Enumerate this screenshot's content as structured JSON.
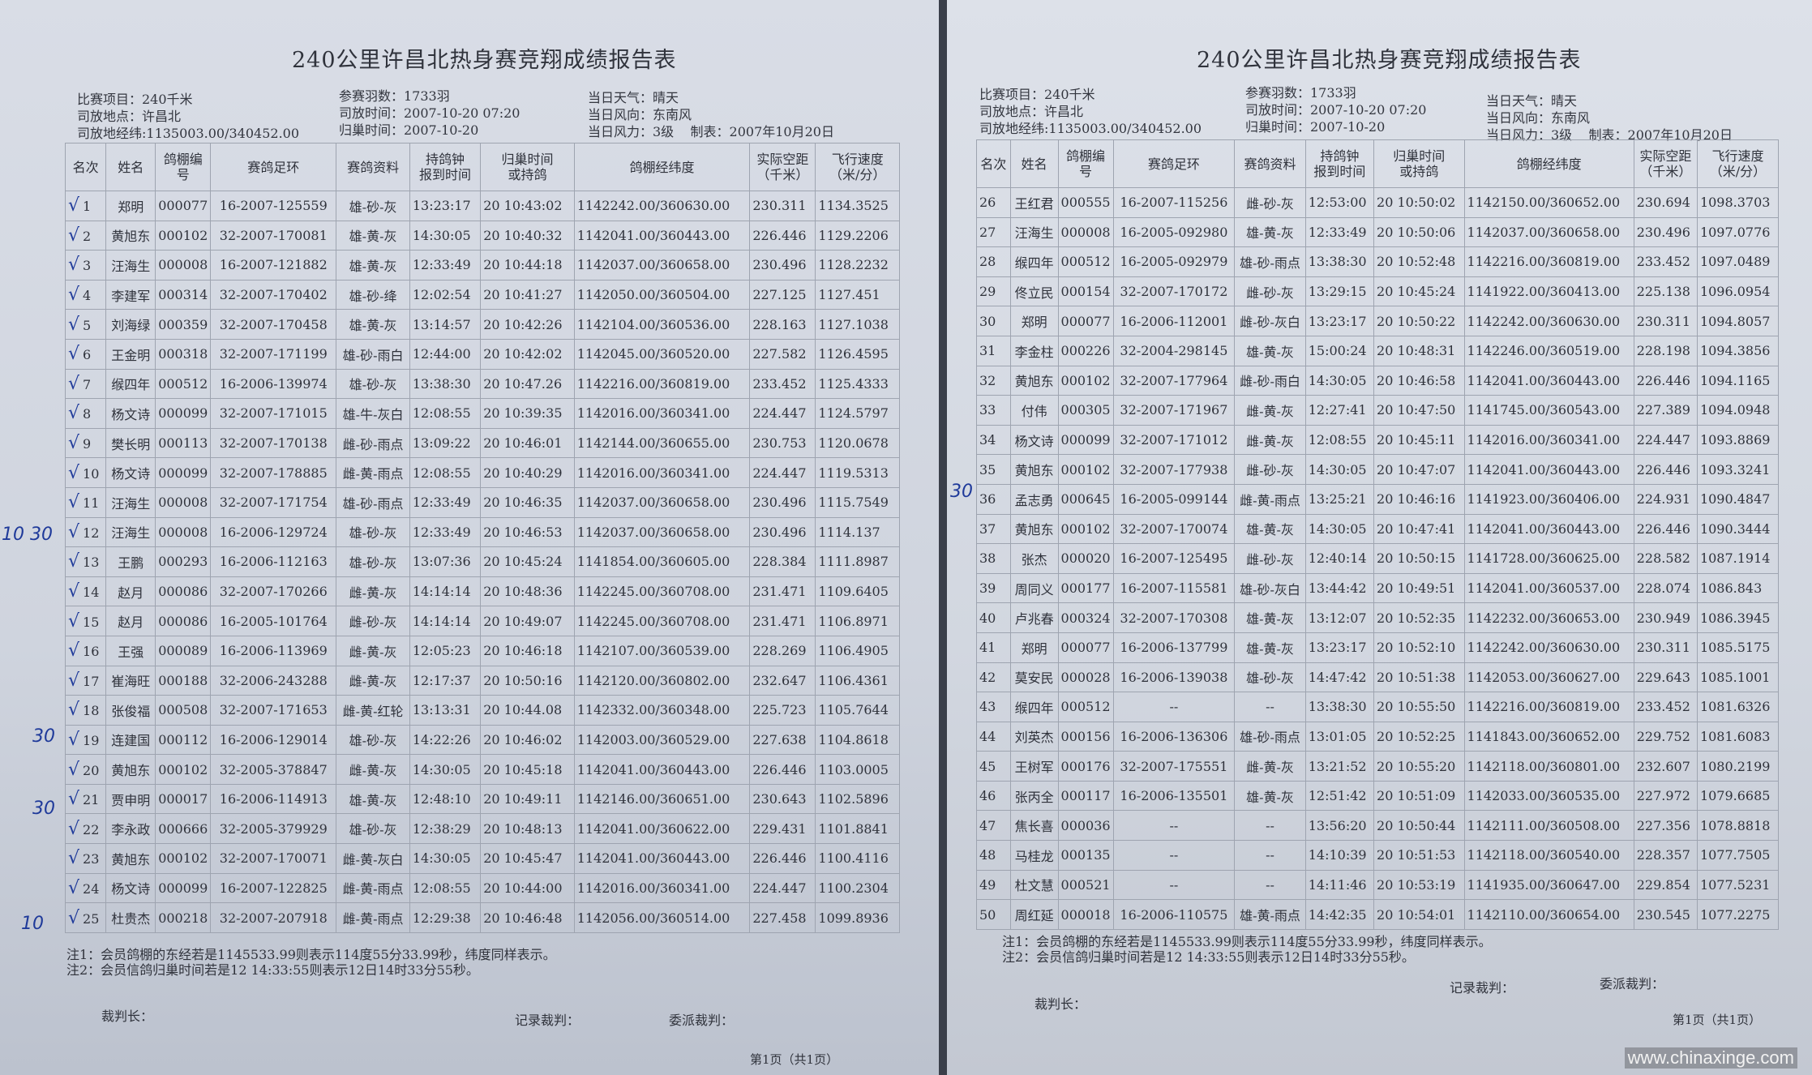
{
  "title": "240公里许昌北热身赛竞翔成绩报告表",
  "meta": {
    "race_item": "比赛项目：240千米",
    "release_place": "司放地点：许昌北",
    "release_coords": "司放地经纬:1135003.00/340452.00",
    "entries": "参赛羽数：1733羽",
    "release_time": "司放时间：2007-10-20 07:20",
    "return_date": "归巢时间：2007-10-20",
    "weather": "当日天气：晴天",
    "wind_dir": "当日风向：东南风",
    "wind_force": "当日风力：3级",
    "made": "制表：2007年10月20日"
  },
  "columns": [
    "名次",
    "姓名",
    "鸽棚编号",
    "赛鸽足环",
    "赛鸽资料",
    "持鸽钟报到时间",
    "归巢时间或持鸽",
    "鸽棚经纬度",
    "实际空距(千米)",
    "飞行速度(米/分)"
  ],
  "columns_html": {
    "loft": [
      "鸽棚",
      "编号"
    ],
    "clock": [
      "持鸽钟",
      "报到时间"
    ],
    "ret": [
      "归巢时间",
      "或持鸽"
    ],
    "dist": [
      "实际空距",
      "（千米）"
    ],
    "speed": [
      "飞行速度",
      "（米/分）"
    ]
  },
  "left_rows": [
    [
      "1",
      "郑明",
      "000077",
      "16-2007-125559",
      "雄-砂-灰",
      "13:23:17",
      "20 10:43:02",
      "1142242.00/360630.00",
      "230.311",
      "1134.3525"
    ],
    [
      "2",
      "黄旭东",
      "000102",
      "32-2007-170081",
      "雄-黄-灰",
      "14:30:05",
      "20 10:40:32",
      "1142041.00/360443.00",
      "226.446",
      "1129.2206"
    ],
    [
      "3",
      "汪海生",
      "000008",
      "16-2007-121882",
      "雄-黄-灰",
      "12:33:49",
      "20 10:44:18",
      "1142037.00/360658.00",
      "230.496",
      "1128.2232"
    ],
    [
      "4",
      "李建军",
      "000314",
      "32-2007-170402",
      "雄-砂-绛",
      "12:02:54",
      "20 10:41:27",
      "1142050.00/360504.00",
      "227.125",
      "1127.451"
    ],
    [
      "5",
      "刘海绿",
      "000359",
      "32-2007-170458",
      "雄-黄-灰",
      "13:14:57",
      "20 10:42:26",
      "1142104.00/360536.00",
      "228.163",
      "1127.1038"
    ],
    [
      "6",
      "王金明",
      "000318",
      "32-2007-171199",
      "雄-砂-雨白",
      "12:44:00",
      "20 10:42:02",
      "1142045.00/360520.00",
      "227.582",
      "1126.4595"
    ],
    [
      "7",
      "缑四年",
      "000512",
      "16-2006-139974",
      "雄-砂-灰",
      "13:38:30",
      "20 10:47.26",
      "1142216.00/360819.00",
      "233.452",
      "1125.4333"
    ],
    [
      "8",
      "杨文诗",
      "000099",
      "32-2007-171015",
      "雄-牛-灰白",
      "12:08:55",
      "20 10:39:35",
      "1142016.00/360341.00",
      "224.447",
      "1124.5797"
    ],
    [
      "9",
      "樊长明",
      "000113",
      "32-2007-170138",
      "雌-砂-雨点",
      "13:09:22",
      "20 10:46:01",
      "1142144.00/360655.00",
      "230.753",
      "1120.0678"
    ],
    [
      "10",
      "杨文诗",
      "000099",
      "32-2007-178885",
      "雌-黄-雨点",
      "12:08:55",
      "20 10:40:29",
      "1142016.00/360341.00",
      "224.447",
      "1119.5313"
    ],
    [
      "11",
      "汪海生",
      "000008",
      "32-2007-171754",
      "雄-砂-雨点",
      "12:33:49",
      "20 10:46:35",
      "1142037.00/360658.00",
      "230.496",
      "1115.7549"
    ],
    [
      "12",
      "汪海生",
      "000008",
      "16-2006-129724",
      "雄-砂-灰",
      "12:33:49",
      "20 10:46:53",
      "1142037.00/360658.00",
      "230.496",
      "1114.137"
    ],
    [
      "13",
      "王鹏",
      "000293",
      "16-2006-112163",
      "雄-砂-灰",
      "13:07:36",
      "20 10:45:24",
      "1141854.00/360605.00",
      "228.384",
      "1111.8987"
    ],
    [
      "14",
      "赵月",
      "000086",
      "32-2007-170266",
      "雌-黄-灰",
      "14:14:14",
      "20 10:48:36",
      "1142245.00/360708.00",
      "231.471",
      "1109.6405"
    ],
    [
      "15",
      "赵月",
      "000086",
      "16-2005-101764",
      "雌-砂-灰",
      "14:14:14",
      "20 10:49:07",
      "1142245.00/360708.00",
      "231.471",
      "1106.8971"
    ],
    [
      "16",
      "王强",
      "000089",
      "16-2006-113969",
      "雌-黄-灰",
      "12:05:23",
      "20 10:46:18",
      "1142107.00/360539.00",
      "228.269",
      "1106.4905"
    ],
    [
      "17",
      "崔海旺",
      "000188",
      "32-2006-243288",
      "雌-黄-灰",
      "12:17:37",
      "20 10:50:16",
      "1142120.00/360802.00",
      "232.647",
      "1106.4361"
    ],
    [
      "18",
      "张俊福",
      "000508",
      "32-2007-171653",
      "雌-黄-红轮",
      "13:13:31",
      "20 10:44.08",
      "1142332.00/360348.00",
      "225.723",
      "1105.7644"
    ],
    [
      "19",
      "连建国",
      "000112",
      "16-2006-129014",
      "雄-砂-灰",
      "14:22:26",
      "20 10:46:02",
      "1142003.00/360529.00",
      "227.638",
      "1104.8618"
    ],
    [
      "20",
      "黄旭东",
      "000102",
      "32-2005-378847",
      "雌-黄-灰",
      "14:30:05",
      "20 10:45:18",
      "1142041.00/360443.00",
      "226.446",
      "1103.0005"
    ],
    [
      "21",
      "贾申明",
      "000017",
      "16-2006-114913",
      "雄-黄-灰",
      "12:48:10",
      "20 10:49:11",
      "1142146.00/360651.00",
      "230.643",
      "1102.5896"
    ],
    [
      "22",
      "李永政",
      "000666",
      "32-2005-379929",
      "雄-砂-灰",
      "12:38:29",
      "20 10:48:13",
      "1142041.00/360622.00",
      "229.431",
      "1101.8841"
    ],
    [
      "23",
      "黄旭东",
      "000102",
      "32-2007-170071",
      "雌-黄-灰白",
      "14:30:05",
      "20 10:45:47",
      "1142041.00/360443.00",
      "226.446",
      "1100.4116"
    ],
    [
      "24",
      "杨文诗",
      "000099",
      "16-2007-122825",
      "雌-黄-雨点",
      "12:08:55",
      "20 10:44:00",
      "1142016.00/360341.00",
      "224.447",
      "1100.2304"
    ],
    [
      "25",
      "杜贵杰",
      "000218",
      "32-2007-207918",
      "雌-黄-雨点",
      "12:29:38",
      "20 10:46:48",
      "1142056.00/360514.00",
      "227.458",
      "1099.8936"
    ]
  ],
  "right_rows": [
    [
      "26",
      "王红君",
      "000555",
      "16-2007-115256",
      "雌-砂-灰",
      "12:53:00",
      "20 10:50:02",
      "1142150.00/360652.00",
      "230.694",
      "1098.3703"
    ],
    [
      "27",
      "汪海生",
      "000008",
      "16-2005-092980",
      "雄-黄-灰",
      "12:33:49",
      "20 10:50:06",
      "1142037.00/360658.00",
      "230.496",
      "1097.0776"
    ],
    [
      "28",
      "缑四年",
      "000512",
      "16-2005-092979",
      "雄-砂-雨点",
      "13:38:30",
      "20 10:52:48",
      "1142216.00/360819.00",
      "233.452",
      "1097.0489"
    ],
    [
      "29",
      "佟立民",
      "000154",
      "32-2007-170172",
      "雌-砂-灰",
      "13:29:15",
      "20 10:45:24",
      "1141922.00/360413.00",
      "225.138",
      "1096.0954"
    ],
    [
      "30",
      "郑明",
      "000077",
      "16-2006-112001",
      "雌-砂-灰白",
      "13:23:17",
      "20 10:50:22",
      "1142242.00/360630.00",
      "230.311",
      "1094.8057"
    ],
    [
      "31",
      "李金柱",
      "000226",
      "32-2004-298145",
      "雄-黄-灰",
      "15:00:24",
      "20 10:48:31",
      "1142246.00/360519.00",
      "228.198",
      "1094.3856"
    ],
    [
      "32",
      "黄旭东",
      "000102",
      "32-2007-177964",
      "雌-砂-雨白",
      "14:30:05",
      "20 10:46:58",
      "1142041.00/360443.00",
      "226.446",
      "1094.1165"
    ],
    [
      "33",
      "付伟",
      "000305",
      "32-2007-171967",
      "雌-黄-灰",
      "12:27:41",
      "20 10:47:50",
      "1141745.00/360543.00",
      "227.389",
      "1094.0948"
    ],
    [
      "34",
      "杨文诗",
      "000099",
      "32-2007-171012",
      "雌-黄-灰",
      "12:08:55",
      "20 10:45:11",
      "1142016.00/360341.00",
      "224.447",
      "1093.8869"
    ],
    [
      "35",
      "黄旭东",
      "000102",
      "32-2007-177938",
      "雌-砂-灰",
      "14:30:05",
      "20 10:47:07",
      "1142041.00/360443.00",
      "226.446",
      "1093.3241"
    ],
    [
      "36",
      "孟志勇",
      "000645",
      "16-2005-099144",
      "雌-黄-雨点",
      "13:25:21",
      "20 10:46:16",
      "1141923.00/360406.00",
      "224.931",
      "1090.4847"
    ],
    [
      "37",
      "黄旭东",
      "000102",
      "32-2007-170074",
      "雄-黄-灰",
      "14:30:05",
      "20 10:47:41",
      "1142041.00/360443.00",
      "226.446",
      "1090.3444"
    ],
    [
      "38",
      "张杰",
      "000020",
      "16-2007-125495",
      "雌-砂-灰",
      "12:40:14",
      "20 10:50:15",
      "1141728.00/360625.00",
      "228.582",
      "1087.1914"
    ],
    [
      "39",
      "周同义",
      "000177",
      "16-2007-115581",
      "雄-砂-灰白",
      "13:44:42",
      "20 10:49:51",
      "1142041.00/360537.00",
      "228.074",
      "1086.843"
    ],
    [
      "40",
      "卢兆春",
      "000324",
      "32-2007-170308",
      "雄-黄-灰",
      "13:12:07",
      "20 10:52:35",
      "1142232.00/360653.00",
      "230.949",
      "1086.3945"
    ],
    [
      "41",
      "郑明",
      "000077",
      "16-2006-137799",
      "雄-黄-灰",
      "13:23:17",
      "20 10:52:10",
      "1142242.00/360630.00",
      "230.311",
      "1085.5175"
    ],
    [
      "42",
      "莫安民",
      "000028",
      "16-2006-139038",
      "雄-砂-灰",
      "14:47:42",
      "20 10:51:38",
      "1142053.00/360627.00",
      "229.643",
      "1085.1001"
    ],
    [
      "43",
      "缑四年",
      "000512",
      "--",
      "--",
      "13:38:30",
      "20 10:55:50",
      "1142216.00/360819.00",
      "233.452",
      "1081.6326"
    ],
    [
      "44",
      "刘英杰",
      "000156",
      "16-2006-136306",
      "雄-砂-雨点",
      "13:01:05",
      "20 10:52:25",
      "1141843.00/360652.00",
      "229.752",
      "1081.6083"
    ],
    [
      "45",
      "王树军",
      "000176",
      "32-2007-175551",
      "雌-黄-灰",
      "13:21:52",
      "20 10:55:20",
      "1142118.00/360801.00",
      "232.607",
      "1080.2199"
    ],
    [
      "46",
      "张丙全",
      "000117",
      "16-2006-135501",
      "雄-黄-灰",
      "12:51:42",
      "20 10:51:09",
      "1142033.00/360535.00",
      "227.972",
      "1079.6685"
    ],
    [
      "47",
      "焦长喜",
      "000036",
      "--",
      "--",
      "13:56:20",
      "20 10:50:44",
      "1142111.00/360508.00",
      "227.356",
      "1078.8818"
    ],
    [
      "48",
      "马桂龙",
      "000135",
      "--",
      "--",
      "14:10:39",
      "20 10:51:53",
      "1142118.00/360540.00",
      "228.357",
      "1077.7505"
    ],
    [
      "49",
      "杜文慧",
      "000521",
      "--",
      "--",
      "14:11:46",
      "20 10:53:19",
      "1141935.00/360647.00",
      "229.854",
      "1077.5231"
    ],
    [
      "50",
      "周红延",
      "000018",
      "16-2006-110575",
      "雄-黄-雨点",
      "14:42:35",
      "20 10:54:01",
      "1142110.00/360654.00",
      "230.545",
      "1077.2275"
    ]
  ],
  "notes": {
    "note1": "注1：会员鸽棚的东经若是1145533.99则表示114度55分33.99秒，纬度同样表示。",
    "note2": "注2：会员信鸽归巢时间若是12  14:33:55则表示12日14时33分55秒。"
  },
  "signatures": {
    "chief": "裁判长：",
    "recorder": "记录裁判：",
    "delegate": "委派裁判："
  },
  "page_label": "第1页（共1页）",
  "handwritten": {
    "a": "10 30",
    "b": "30",
    "c": "30",
    "d": "10",
    "e": "30"
  },
  "watermark": "www.chinaxinge.com"
}
